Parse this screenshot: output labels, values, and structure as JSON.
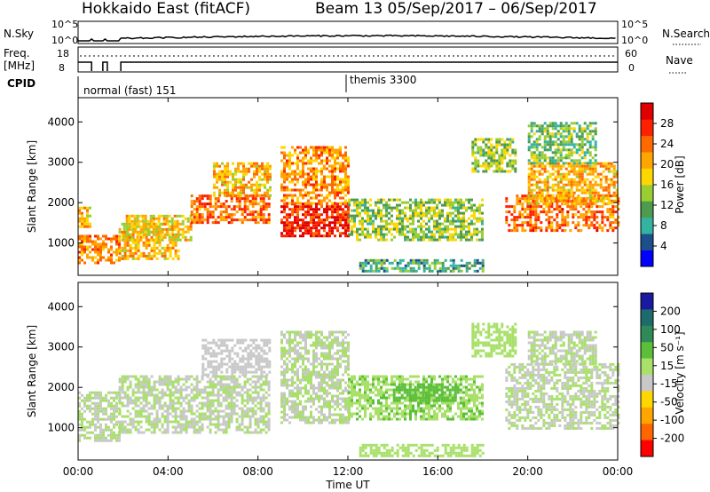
{
  "title_left": "Hokkaido East (fitACF)",
  "title_right": "Beam 13  05/Sep/2017 – 06/Sep/2017",
  "header": {
    "nsky_label": "N.Sky",
    "nsky_ticks": [
      "10^5",
      "10^0"
    ],
    "nsearch_label": "N.Search",
    "nsearch_ticks": [
      "10^5",
      "10^0"
    ],
    "freq_label_1": "Freq.",
    "freq_label_2": "[MHz]",
    "freq_ticks": [
      "18",
      "8"
    ],
    "nave_label": "Nave",
    "nave_ticks": [
      "60",
      "0"
    ],
    "cpid_label": "CPID",
    "cpid_1": "normal (fast) 151",
    "cpid_2": "themis 3300"
  },
  "x_axis": {
    "label": "Time UT",
    "ticks": [
      "00:00",
      "04:00",
      "08:00",
      "12:00",
      "16:00",
      "20:00",
      "00:00"
    ],
    "range_hours": [
      0,
      24
    ]
  },
  "chart_data": [
    {
      "type": "heatmap",
      "name": "power",
      "ylabel": "Slant Range [km]",
      "yticks": [
        "1000",
        "2000",
        "3000",
        "4000"
      ],
      "ylim": [
        200,
        4600
      ],
      "colorbar_label": "Power [dB]",
      "colorbar_ticks": [
        "4",
        "8",
        "12",
        "16",
        "20",
        "24",
        "28"
      ],
      "colorbar_range": [
        0,
        32
      ],
      "colors": [
        "#0000ff",
        "#1d4f8a",
        "#33b3a0",
        "#4e9a4e",
        "#9acd32",
        "#ffd700",
        "#ffa500",
        "#ff6a00",
        "#ff2000",
        "#e00000"
      ],
      "regions": [
        {
          "t": [
            0.0,
            0.5
          ],
          "r": [
            1400,
            1900
          ],
          "level": 20
        },
        {
          "t": [
            0.0,
            1.8
          ],
          "r": [
            500,
            1200
          ],
          "level": 22
        },
        {
          "t": [
            1.8,
            4.5
          ],
          "r": [
            600,
            1500
          ],
          "level": 20
        },
        {
          "t": [
            2.0,
            5.0
          ],
          "r": [
            1100,
            1700
          ],
          "level": 18
        },
        {
          "t": [
            5.0,
            8.5
          ],
          "r": [
            1500,
            2200
          ],
          "level": 24
        },
        {
          "t": [
            6.0,
            8.5
          ],
          "r": [
            2200,
            3000
          ],
          "level": 20
        },
        {
          "t": [
            9.0,
            12.0
          ],
          "r": [
            1200,
            2000
          ],
          "level": 28
        },
        {
          "t": [
            9.0,
            12.0
          ],
          "r": [
            2000,
            3400
          ],
          "level": 22
        },
        {
          "t": [
            12.0,
            18.0
          ],
          "r": [
            1100,
            2100
          ],
          "level": 14
        },
        {
          "t": [
            12.5,
            18.0
          ],
          "r": [
            300,
            600
          ],
          "level": 10
        },
        {
          "t": [
            17.5,
            19.5
          ],
          "r": [
            2800,
            3600
          ],
          "level": 14
        },
        {
          "t": [
            19.0,
            24.0
          ],
          "r": [
            1300,
            2200
          ],
          "level": 24
        },
        {
          "t": [
            20.0,
            24.0
          ],
          "r": [
            2000,
            3000
          ],
          "level": 20
        },
        {
          "t": [
            20.0,
            23.0
          ],
          "r": [
            3000,
            4000
          ],
          "level": 12
        }
      ]
    },
    {
      "type": "heatmap",
      "name": "velocity",
      "ylabel": "Slant Range [km]",
      "yticks": [
        "1000",
        "2000",
        "3000",
        "4000"
      ],
      "ylim": [
        200,
        4600
      ],
      "colorbar_label": "Velocity [m s⁻¹]",
      "colorbar_ticks": [
        "200",
        "100",
        "50",
        "15",
        "-15",
        "-50",
        "-100",
        "-200"
      ],
      "colorbar_range": [
        -250,
        250
      ],
      "colors": [
        "#1a1aa0",
        "#1f6b6b",
        "#2e8b57",
        "#5cbf3a",
        "#a8e06a",
        "#c8c8c8",
        "#ffd700",
        "#ffa500",
        "#ff6600",
        "#ff0000"
      ],
      "regions": [
        {
          "t": [
            0.0,
            1.8
          ],
          "r": [
            700,
            1900
          ],
          "level": 0
        },
        {
          "t": [
            1.8,
            8.5
          ],
          "r": [
            900,
            2300
          ],
          "level": 0
        },
        {
          "t": [
            5.5,
            8.5
          ],
          "r": [
            2300,
            3200
          ],
          "level": -30
        },
        {
          "t": [
            9.0,
            12.0
          ],
          "r": [
            1100,
            3400
          ],
          "level": 0
        },
        {
          "t": [
            12.0,
            18.0
          ],
          "r": [
            1200,
            2300
          ],
          "level": 40
        },
        {
          "t": [
            14.0,
            17.0
          ],
          "r": [
            1700,
            2100
          ],
          "level": 80
        },
        {
          "t": [
            12.5,
            18.0
          ],
          "r": [
            300,
            600
          ],
          "level": 30
        },
        {
          "t": [
            17.5,
            19.5
          ],
          "r": [
            2800,
            3600
          ],
          "level": 30
        },
        {
          "t": [
            19.0,
            24.0
          ],
          "r": [
            1000,
            2600
          ],
          "level": 0
        },
        {
          "t": [
            20.0,
            23.0
          ],
          "r": [
            2600,
            3400
          ],
          "level": 0
        }
      ]
    }
  ]
}
